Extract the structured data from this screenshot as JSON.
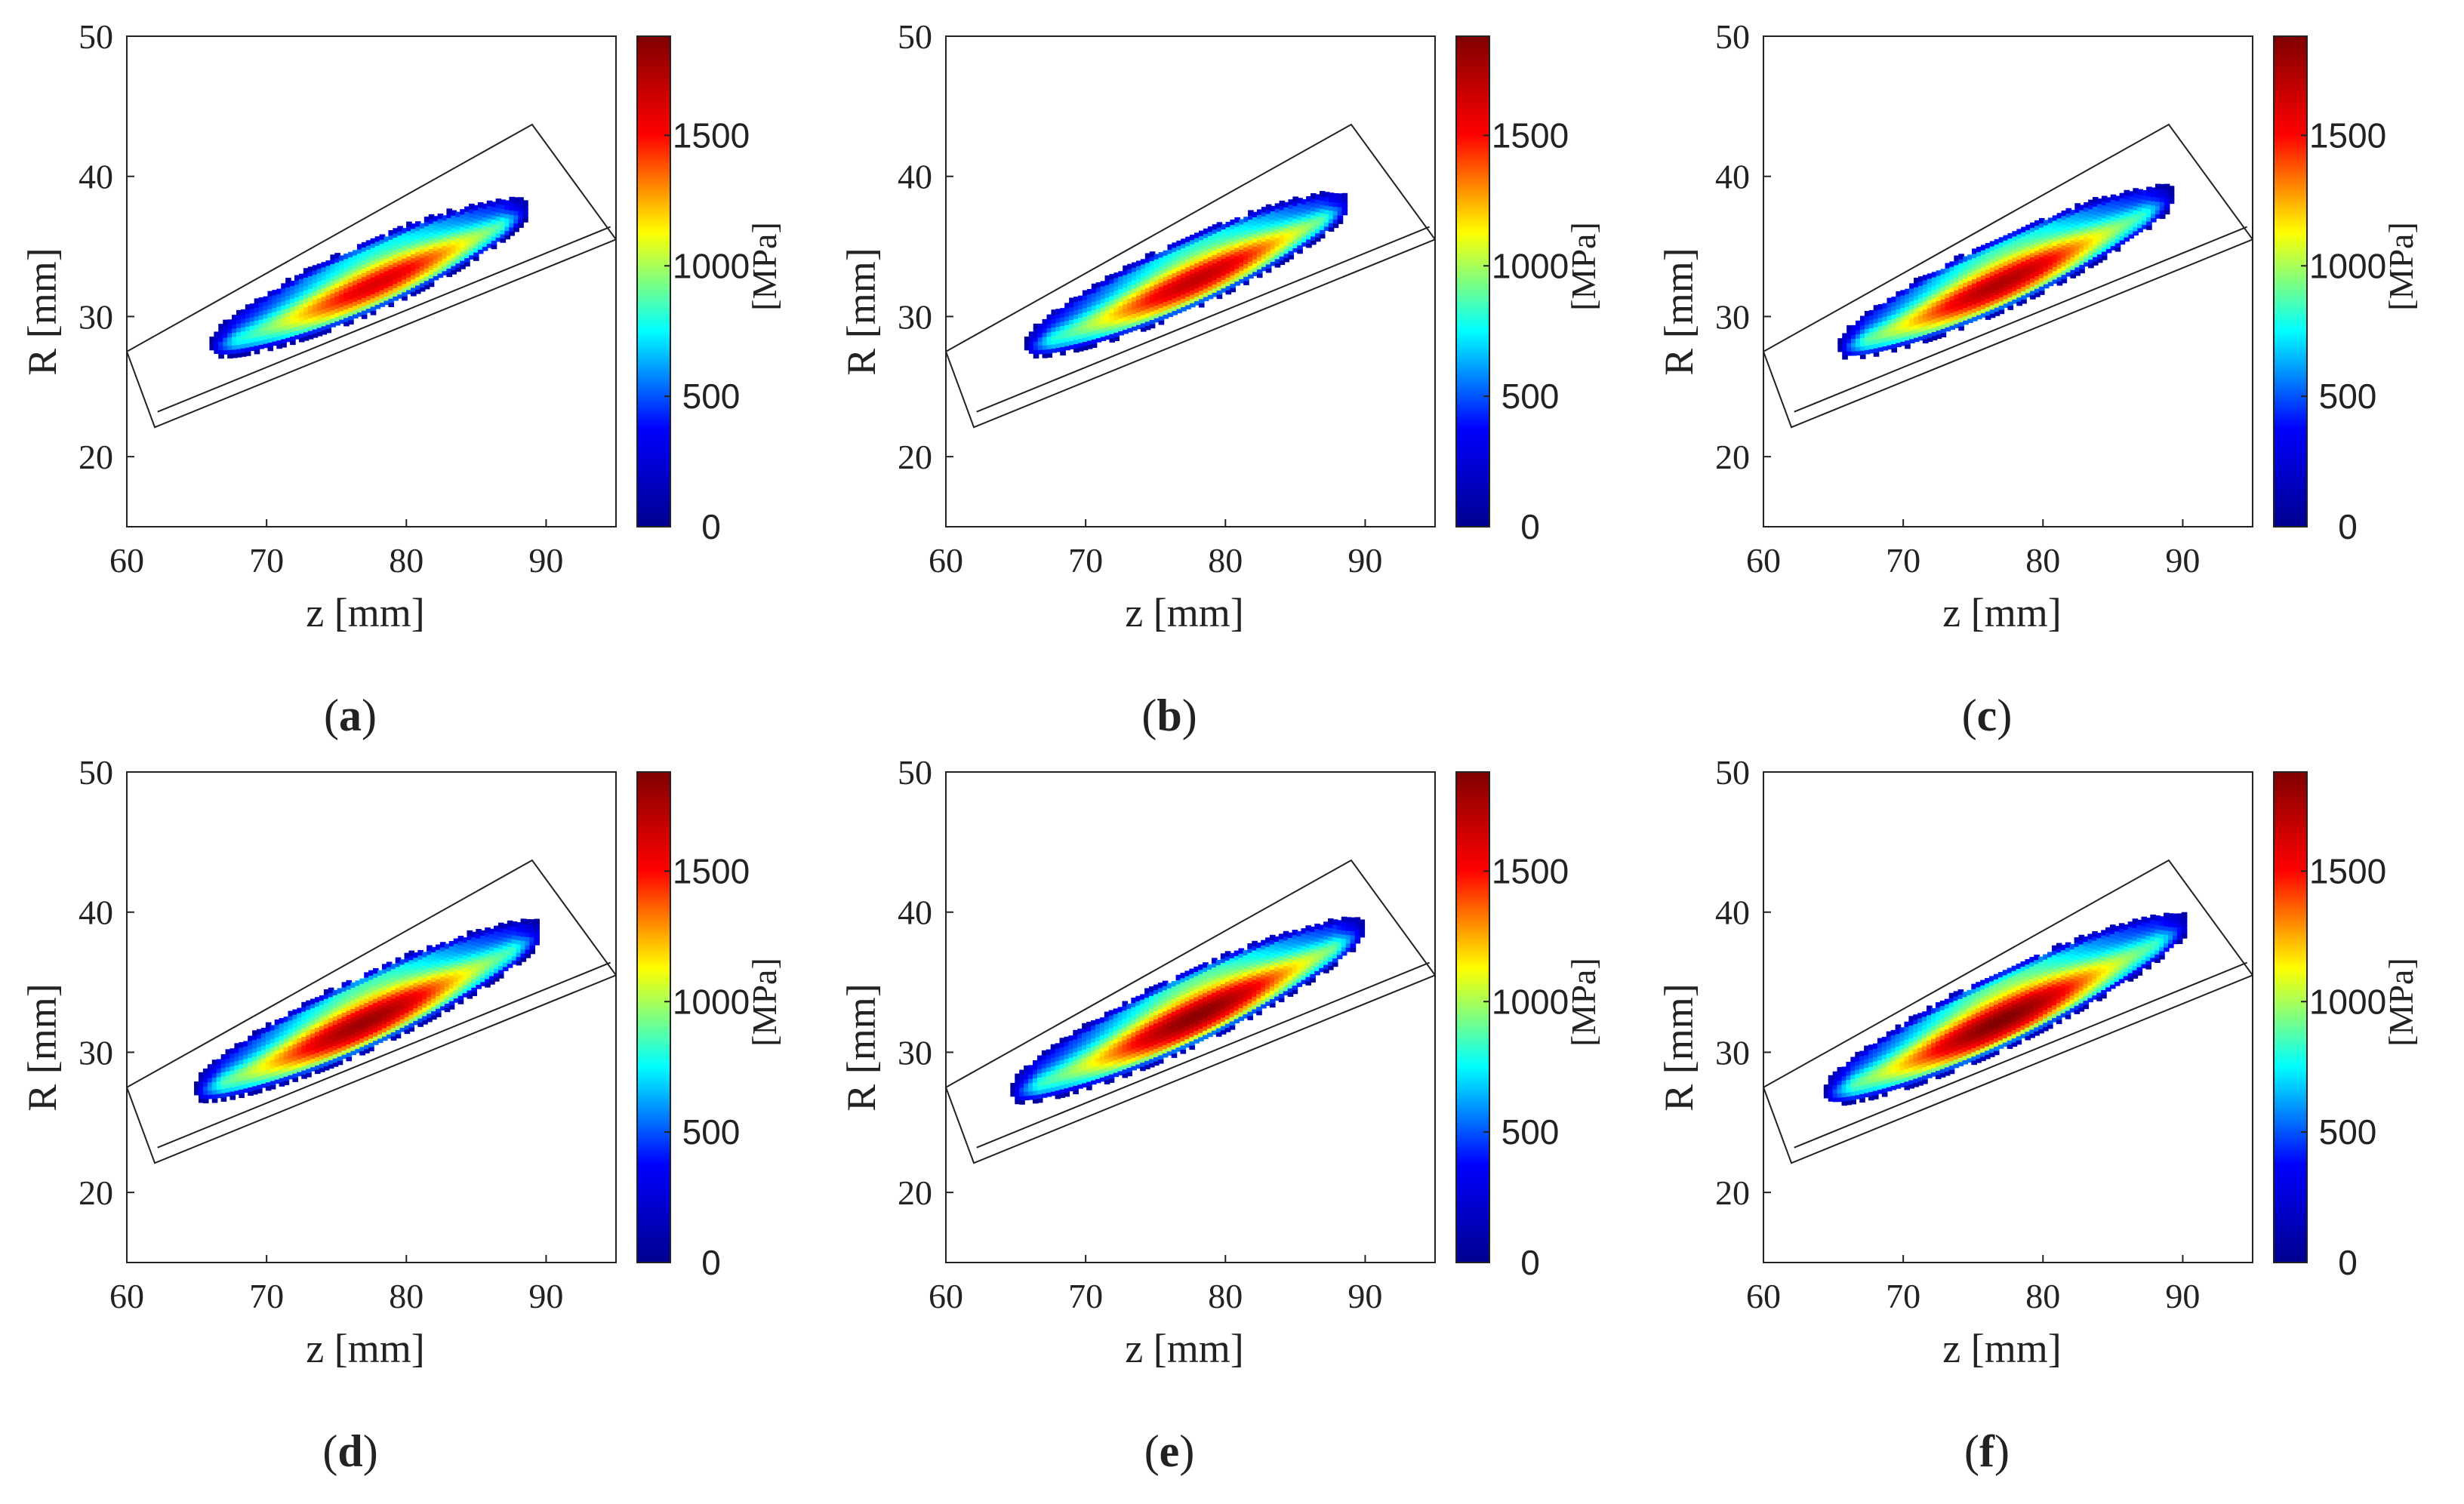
{
  "colormap": [
    "#00008f",
    "#0000ff",
    "#00ffff",
    "#ffff00",
    "#ff0000",
    "#800000"
  ],
  "chart_data": [
    {
      "panel_label": "(a)",
      "letter": "a",
      "type": "heatmap",
      "xlabel": "z [mm]",
      "ylabel": "R [mm]",
      "xlim": [
        60,
        95
      ],
      "ylim": [
        15,
        50
      ],
      "xticks": [
        60,
        70,
        80,
        90
      ],
      "yticks": [
        20,
        30,
        40,
        50
      ],
      "colorbar": {
        "label": "[MPa]",
        "min": 0,
        "max": 1880,
        "ticks": [
          0,
          500,
          1000,
          1500
        ]
      },
      "rectangle_corners": [
        [
          60,
          27.5
        ],
        [
          89,
          43.7
        ],
        [
          95,
          35.5
        ],
        [
          62,
          22.1
        ]
      ],
      "inner_line": [
        [
          62.2,
          23.2
        ],
        [
          94.6,
          36.4
        ]
      ],
      "field": {
        "z_start": 66.1,
        "z_end": 88.6,
        "base_R": 28.0,
        "slope": 0.43,
        "half_width": 1.45,
        "peak_z": 78,
        "peak_value": 1600
      }
    },
    {
      "panel_label": "(b)",
      "letter": "b",
      "type": "heatmap",
      "xlabel": "z [mm]",
      "ylabel": "R [mm]",
      "xlim": [
        60,
        95
      ],
      "ylim": [
        15,
        50
      ],
      "xticks": [
        60,
        70,
        80,
        90
      ],
      "yticks": [
        20,
        30,
        40,
        50
      ],
      "colorbar": {
        "label": "[MPa]",
        "min": 0,
        "max": 1880,
        "ticks": [
          0,
          500,
          1000,
          1500
        ]
      },
      "rectangle_corners": [
        [
          60,
          27.5
        ],
        [
          89,
          43.7
        ],
        [
          95,
          35.5
        ],
        [
          62,
          22.1
        ]
      ],
      "inner_line": [
        [
          62.2,
          23.2
        ],
        [
          94.6,
          36.4
        ]
      ],
      "field": {
        "z_start": 65.8,
        "z_end": 88.8,
        "base_R": 28.0,
        "slope": 0.44,
        "half_width": 1.45,
        "peak_z": 78,
        "peak_value": 1680
      }
    },
    {
      "panel_label": "(c)",
      "letter": "c",
      "type": "heatmap",
      "xlabel": "z [mm]",
      "ylabel": "R [mm]",
      "xlim": [
        60,
        95
      ],
      "ylim": [
        15,
        50
      ],
      "xticks": [
        60,
        70,
        80,
        90
      ],
      "yticks": [
        20,
        30,
        40,
        50
      ],
      "colorbar": {
        "label": "[MPa]",
        "min": 0,
        "max": 1880,
        "ticks": [
          0,
          500,
          1000,
          1500
        ]
      },
      "rectangle_corners": [
        [
          60,
          27.5
        ],
        [
          89,
          43.7
        ],
        [
          95,
          35.5
        ],
        [
          62,
          22.1
        ]
      ],
      "inner_line": [
        [
          62.2,
          23.2
        ],
        [
          94.6,
          36.4
        ]
      ],
      "field": {
        "z_start": 65.5,
        "z_end": 89.2,
        "base_R": 27.9,
        "slope": 0.45,
        "half_width": 1.5,
        "peak_z": 77,
        "peak_value": 1740
      }
    },
    {
      "panel_label": "(d)",
      "letter": "d",
      "type": "heatmap",
      "xlabel": "z [mm]",
      "ylabel": "R [mm]",
      "xlim": [
        60,
        95
      ],
      "ylim": [
        15,
        50
      ],
      "xticks": [
        60,
        70,
        80,
        90
      ],
      "yticks": [
        20,
        30,
        40,
        50
      ],
      "colorbar": {
        "label": "[MPa]",
        "min": 0,
        "max": 1880,
        "ticks": [
          0,
          500,
          1000,
          1500
        ]
      },
      "rectangle_corners": [
        [
          60,
          27.5
        ],
        [
          89,
          43.7
        ],
        [
          95,
          35.5
        ],
        [
          62,
          22.1
        ]
      ],
      "inner_line": [
        [
          62.2,
          23.2
        ],
        [
          94.6,
          36.4
        ]
      ],
      "field": {
        "z_start": 65.0,
        "z_end": 89.6,
        "base_R": 27.4,
        "slope": 0.455,
        "half_width": 1.6,
        "peak_z": 77,
        "peak_value": 1800
      }
    },
    {
      "panel_label": "(e)",
      "letter": "e",
      "type": "heatmap",
      "xlabel": "z [mm]",
      "ylabel": "R [mm]",
      "xlim": [
        60,
        95
      ],
      "ylim": [
        15,
        50
      ],
      "xticks": [
        60,
        70,
        80,
        90
      ],
      "yticks": [
        20,
        30,
        40,
        50
      ],
      "colorbar": {
        "label": "[MPa]",
        "min": 0,
        "max": 1880,
        "ticks": [
          0,
          500,
          1000,
          1500
        ]
      },
      "rectangle_corners": [
        [
          60,
          27.5
        ],
        [
          89,
          43.7
        ],
        [
          95,
          35.5
        ],
        [
          62,
          22.1
        ]
      ],
      "inner_line": [
        [
          62.2,
          23.2
        ],
        [
          94.6,
          36.4
        ]
      ],
      "field": {
        "z_start": 64.8,
        "z_end": 89.8,
        "base_R": 27.3,
        "slope": 0.46,
        "half_width": 1.6,
        "peak_z": 78,
        "peak_value": 1850
      }
    },
    {
      "panel_label": "(f)",
      "letter": "f",
      "type": "heatmap",
      "xlabel": "z [mm]",
      "ylabel": "R [mm]",
      "xlim": [
        60,
        95
      ],
      "ylim": [
        15,
        50
      ],
      "xticks": [
        60,
        70,
        80,
        90
      ],
      "yticks": [
        20,
        30,
        40,
        50
      ],
      "colorbar": {
        "label": "[MPa]",
        "min": 0,
        "max": 1880,
        "ticks": [
          0,
          500,
          1000,
          1500
        ]
      },
      "rectangle_corners": [
        [
          60,
          27.5
        ],
        [
          89,
          43.7
        ],
        [
          95,
          35.5
        ],
        [
          62,
          22.1
        ]
      ],
      "inner_line": [
        [
          62.2,
          23.2
        ],
        [
          94.6,
          36.4
        ]
      ],
      "field": {
        "z_start": 64.5,
        "z_end": 90.2,
        "base_R": 27.2,
        "slope": 0.465,
        "half_width": 1.65,
        "peak_z": 77,
        "peak_value": 1880
      }
    }
  ]
}
